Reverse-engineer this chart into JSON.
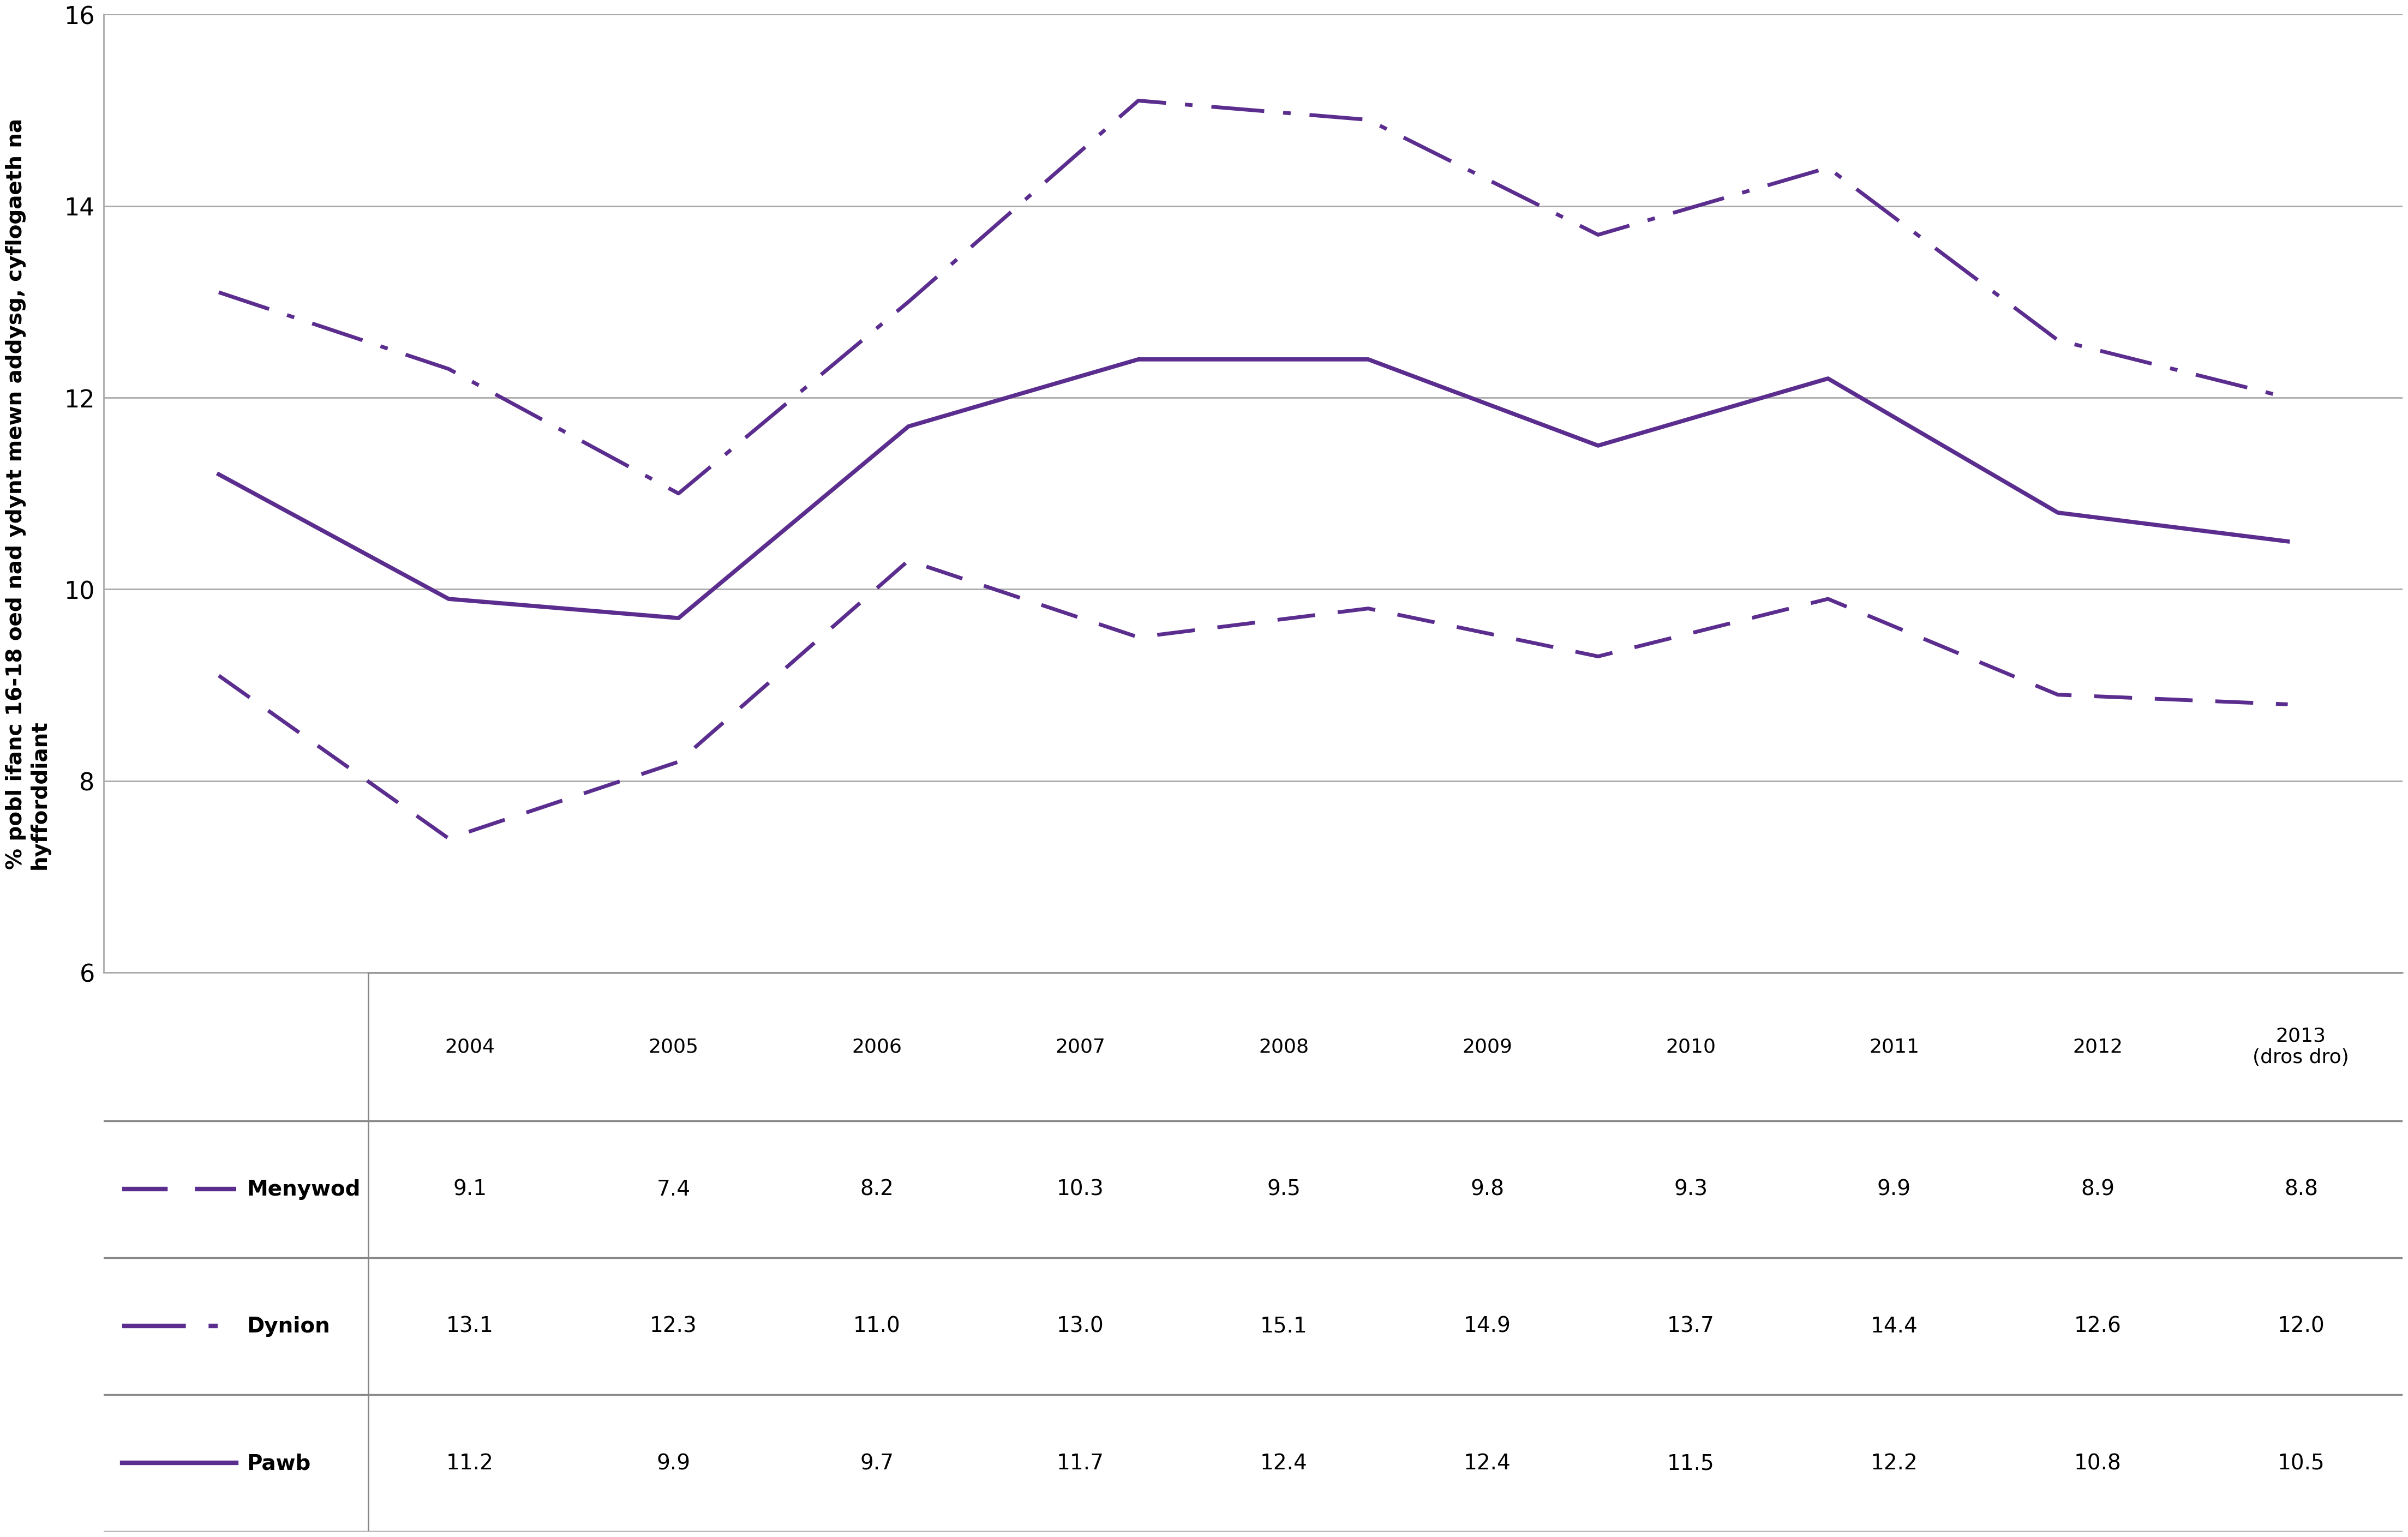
{
  "years": [
    2004,
    2005,
    2006,
    2007,
    2008,
    2009,
    2010,
    2011,
    2012,
    2013
  ],
  "year_labels": [
    "2004",
    "2005",
    "2006",
    "2007",
    "2008",
    "2009",
    "2010",
    "2011",
    "2012",
    "2013\n(dros dro)"
  ],
  "menywod": [
    9.1,
    7.4,
    8.2,
    10.3,
    9.5,
    9.8,
    9.3,
    9.9,
    8.9,
    8.8
  ],
  "dynion": [
    13.1,
    12.3,
    11.0,
    13.0,
    15.1,
    14.9,
    13.7,
    14.4,
    12.6,
    12.0
  ],
  "pawb": [
    11.2,
    9.9,
    9.7,
    11.7,
    12.4,
    12.4,
    11.5,
    12.2,
    10.8,
    10.5
  ],
  "color_purple": "#5b2d8e",
  "ylim": [
    6,
    16
  ],
  "yticks": [
    6,
    8,
    10,
    12,
    14,
    16
  ],
  "ylabel": "% pobl ifanc 16-18 oed nad ydynt mewn addysg, cyflogaeth na\nhyfforddiant",
  "grid_color": "#aaaaaa",
  "border_color": "#888888",
  "row_labels": [
    "Menywod",
    "Dynion",
    "Pawb"
  ],
  "menywod_vals": [
    9.1,
    7.4,
    8.2,
    10.3,
    9.5,
    9.8,
    9.3,
    9.9,
    8.9,
    8.8
  ],
  "dynion_vals": [
    13.1,
    12.3,
    11.0,
    13.0,
    15.1,
    14.9,
    13.7,
    14.4,
    12.6,
    12.0
  ],
  "pawb_vals": [
    11.2,
    9.9,
    9.7,
    11.7,
    12.4,
    12.4,
    11.5,
    12.2,
    10.8,
    10.5
  ]
}
